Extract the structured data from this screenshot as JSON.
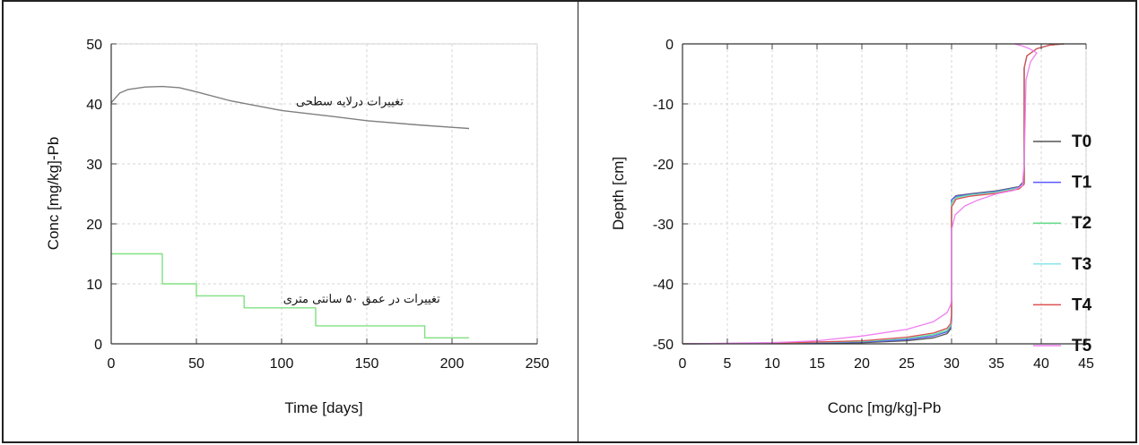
{
  "chart_data": [
    {
      "type": "line",
      "title": "",
      "xlabel": "Time [days]",
      "ylabel": "Conc [mg/kg]-Pb",
      "xlim": [
        0,
        250
      ],
      "ylim": [
        0,
        50
      ],
      "xticks": [
        "0",
        "50",
        "100",
        "150",
        "200",
        "250"
      ],
      "yticks": [
        "0",
        "10",
        "20",
        "30",
        "40",
        "50"
      ],
      "grid": true,
      "colors": {
        "surface": "#7f7f7f",
        "depth": "#80e080"
      },
      "series": [
        {
          "x": [
            0,
            5,
            10,
            20,
            30,
            40,
            50,
            70,
            100,
            130,
            150,
            180,
            210
          ],
          "values": [
            40.2,
            41.8,
            42.4,
            42.8,
            42.9,
            42.7,
            42.0,
            40.5,
            38.9,
            37.9,
            37.2,
            36.5,
            35.9
          ]
        },
        {
          "x": [
            0,
            30,
            30,
            50,
            50,
            78,
            78,
            100,
            100,
            120,
            120,
            184,
            184,
            210
          ],
          "values": [
            15,
            15,
            10,
            10,
            8,
            8,
            6,
            6,
            6,
            6,
            3,
            3,
            1,
            1
          ]
        }
      ],
      "annotations": [
        {
          "text": "تغییرات درلایه سطحی",
          "x": 140,
          "y": 39.8
        },
        {
          "text": "تغییرات در عمق ۵۰ سانتی متری",
          "x": 147,
          "y": 6.9
        }
      ]
    },
    {
      "type": "line",
      "title": "",
      "xlabel": "Conc [mg/kg]-Pb",
      "ylabel": "Depth [cm]",
      "xlim": [
        0,
        45
      ],
      "ylim": [
        -50,
        0
      ],
      "xticks": [
        "0",
        "5",
        "10",
        "15",
        "20",
        "25",
        "30",
        "35",
        "40",
        "45"
      ],
      "yticks": [
        "0",
        "-10",
        "-20",
        "-30",
        "-40",
        "-50"
      ],
      "grid": true,
      "legend_position": "right",
      "series": [
        {
          "name": "T0",
          "color": "#555555",
          "x": [
            0,
            10,
            20,
            25,
            28,
            29.5,
            29.9,
            30,
            30,
            30.5,
            32,
            35,
            37.5,
            38.1,
            38.1,
            38.4,
            39.5,
            41,
            42.5
          ],
          "values": [
            -50,
            -49.95,
            -49.8,
            -49.5,
            -49,
            -48.3,
            -47.5,
            -46,
            -26,
            -25.3,
            -25,
            -24.5,
            -23.8,
            -22.8,
            -4,
            -2,
            -0.8,
            -0.2,
            0
          ]
        },
        {
          "name": "T1",
          "color": "#5a5aff",
          "x": [
            0,
            10,
            20,
            25,
            28,
            29.5,
            29.9,
            30,
            30,
            30.5,
            32,
            35,
            37.5,
            38.1,
            38.1,
            38.4,
            39.5,
            41,
            42.5
          ],
          "values": [
            -50,
            -49.95,
            -49.7,
            -49.3,
            -48.7,
            -48,
            -47.2,
            -46,
            -26,
            -25.4,
            -25.1,
            -24.6,
            -23.9,
            -23,
            -4,
            -2,
            -0.8,
            -0.2,
            0
          ]
        },
        {
          "name": "T2",
          "color": "#66dd88",
          "x": [
            0,
            10,
            20,
            25,
            28,
            29.5,
            29.9,
            30,
            30,
            30.5,
            32,
            35,
            37.5,
            38.1,
            38.1,
            38.4,
            39.5,
            41,
            42.5
          ],
          "values": [
            -50,
            -49.9,
            -49.6,
            -49.1,
            -48.5,
            -47.8,
            -47,
            -45,
            -26.5,
            -25.6,
            -25.2,
            -24.7,
            -24,
            -23.2,
            -4,
            -2,
            -0.8,
            -0.2,
            0
          ]
        },
        {
          "name": "T3",
          "color": "#88e6ee",
          "x": [
            0,
            10,
            20,
            25,
            28,
            29.5,
            29.9,
            30,
            30,
            30.5,
            32,
            35,
            37.5,
            38.1,
            38.1,
            38.4,
            39.5,
            41,
            42.5
          ],
          "values": [
            -50,
            -49.9,
            -49.5,
            -49,
            -48.3,
            -47.5,
            -46.8,
            -45,
            -27,
            -25.8,
            -25.3,
            -24.8,
            -24.1,
            -23.3,
            -4,
            -2,
            -0.8,
            -0.2,
            0
          ]
        },
        {
          "name": "T4",
          "color": "#e05050",
          "x": [
            0,
            10,
            20,
            25,
            28,
            29.5,
            29.9,
            30,
            30,
            30.5,
            32,
            35,
            37.5,
            38.1,
            38.1,
            38.4,
            39.5,
            41,
            42.5
          ],
          "values": [
            -50,
            -49.9,
            -49.5,
            -48.9,
            -48.2,
            -47.4,
            -46.6,
            -45,
            -27.2,
            -25.9,
            -25.4,
            -24.9,
            -24.2,
            -23.4,
            -4,
            -2,
            -0.8,
            -0.2,
            0
          ]
        },
        {
          "name": "T5",
          "color": "#f07ff0",
          "x": [
            0,
            10,
            15,
            20,
            25,
            28,
            29.5,
            29.9,
            30,
            30,
            30.4,
            31.5,
            33,
            35,
            37,
            37.9,
            38.1,
            38.3,
            38.8,
            39.5,
            38.7,
            37.8,
            37
          ],
          "values": [
            -50,
            -49.8,
            -49.5,
            -48.7,
            -47.6,
            -46.3,
            -44.8,
            -43.5,
            -42.5,
            -31,
            -28.5,
            -27,
            -26,
            -25,
            -24.4,
            -23.6,
            -20,
            -6,
            -3,
            -1.5,
            -0.8,
            -0.3,
            0
          ]
        }
      ]
    }
  ]
}
